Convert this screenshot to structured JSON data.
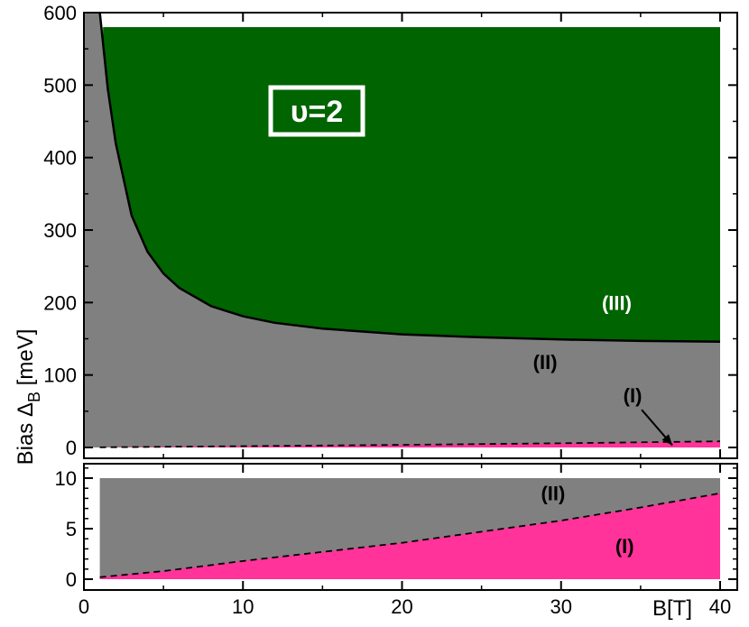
{
  "chart_data": [
    {
      "type": "area",
      "panel": "top",
      "annotation": "υ=2",
      "xlim": [
        0,
        40
      ],
      "ylim": [
        0,
        600
      ],
      "x_ticks": [
        0,
        10,
        20,
        30,
        40
      ],
      "y_ticks": [
        0,
        100,
        200,
        300,
        400,
        500,
        600
      ],
      "y_tick_labels": [
        "0",
        "100",
        "200",
        "300",
        "400",
        "500",
        "600"
      ],
      "filled_region_top": 580,
      "filled_x_range": [
        1.2,
        40
      ],
      "boundary_solid": {
        "x": [
          1,
          1.5,
          2,
          3,
          4,
          5,
          6,
          8,
          10,
          12,
          15,
          20,
          25,
          30,
          35,
          40
        ],
        "y": [
          600,
          495,
          420,
          320,
          270,
          240,
          220,
          195,
          181,
          172,
          164,
          156,
          152,
          149,
          147,
          146
        ]
      },
      "boundary_dashed": {
        "x": [
          1,
          10,
          20,
          30,
          40
        ],
        "y": [
          0.2,
          1.8,
          3.6,
          5.8,
          8.5
        ]
      },
      "regions": [
        {
          "label": "(III)",
          "color": "#006400",
          "label_x": 33.5,
          "label_y": 190,
          "label_color": "#ffffff"
        },
        {
          "label": "(II)",
          "color": "#808080",
          "label_x": 29,
          "label_y": 108,
          "label_color": "#000000"
        },
        {
          "label": "(I)",
          "color": "#ff3399",
          "label_x": 34.5,
          "label_y": 62,
          "label_color": "#000000",
          "arrow_to": [
            37,
            3
          ]
        }
      ]
    },
    {
      "type": "area",
      "panel": "bottom",
      "xlim": [
        0,
        40
      ],
      "ylim": [
        0,
        11
      ],
      "x_ticks": [
        0,
        10,
        20,
        30,
        40
      ],
      "x_tick_labels": [
        "0",
        "10",
        "20",
        "30",
        "40"
      ],
      "y_ticks": [
        0,
        5,
        10
      ],
      "y_tick_labels": [
        "0",
        "5",
        "10"
      ],
      "filled_region_top": 10,
      "filled_x_range": [
        1,
        40
      ],
      "boundary_dashed": {
        "x": [
          1,
          5,
          10,
          15,
          20,
          25,
          30,
          35,
          40
        ],
        "y": [
          0.2,
          0.8,
          1.8,
          2.7,
          3.6,
          4.7,
          5.8,
          7.1,
          8.5
        ]
      },
      "regions": [
        {
          "label": "(II)",
          "color": "#808080",
          "label_x": 29.5,
          "label_y": 7.8,
          "label_color": "#000000"
        },
        {
          "label": "(I)",
          "color": "#ff3399",
          "label_x": 34,
          "label_y": 2.6,
          "label_color": "#000000"
        }
      ]
    }
  ],
  "axes": {
    "ylabel_text": "Bias Δ",
    "ylabel_sub": "B",
    "ylabel_unit": " [meV]",
    "xlabel": "B[T]"
  }
}
